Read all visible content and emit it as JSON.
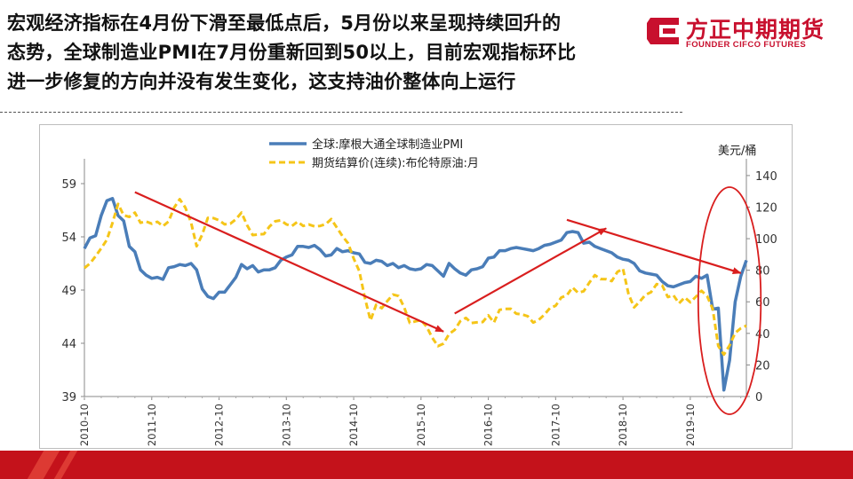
{
  "headline": [
    "宏观经济指标在4月份下滑至最低点后，5月份以来呈现持续回升的",
    "态势，全球制造业PMI在7月份重新回到50以上，目前宏观指标环比",
    "进一步修复的方向并没有发生变化，这支持油价整体向上运行"
  ],
  "logo": {
    "cn": "方正中期期货",
    "en": "FOUNDER CIFCO FUTURES",
    "icon": "founder-logo-mark"
  },
  "colors": {
    "pmi": "#4a7db8",
    "brent": "#f5c518",
    "arrow": "#d91e1e",
    "brand": "#c8102e"
  },
  "chart_data": {
    "type": "line",
    "x_tick_labels": [
      "2010-10",
      "2011-10",
      "2012-10",
      "2013-10",
      "2014-10",
      "2015-10",
      "2016-10",
      "2017-10",
      "2018-10",
      "2019-10"
    ],
    "right_axis_unit": "美元/桶",
    "left_axis": {
      "ticks": [
        39,
        44,
        49,
        54,
        59
      ],
      "ylim": [
        39,
        60.5
      ]
    },
    "right_axis": {
      "ticks": [
        0,
        20,
        40,
        60,
        80,
        100,
        120,
        140
      ],
      "ylim": [
        0,
        145
      ]
    },
    "legend_placement": "top-center",
    "series": [
      {
        "name": "全球:摩根大通全球制造业PMI",
        "axis": "left",
        "style": "solid",
        "points": [
          [
            "2010-10",
            52.9
          ],
          [
            "2010-11",
            53.9
          ],
          [
            "2010-12",
            54.1
          ],
          [
            "2011-01",
            56.0
          ],
          [
            "2011-02",
            57.4
          ],
          [
            "2011-03",
            57.6
          ],
          [
            "2011-04",
            56.0
          ],
          [
            "2011-05",
            55.5
          ],
          [
            "2011-06",
            53.1
          ],
          [
            "2011-07",
            52.6
          ],
          [
            "2011-08",
            50.9
          ],
          [
            "2011-09",
            50.4
          ],
          [
            "2011-10",
            50.1
          ],
          [
            "2011-11",
            50.2
          ],
          [
            "2011-12",
            50.0
          ],
          [
            "2012-01",
            51.1
          ],
          [
            "2012-02",
            51.2
          ],
          [
            "2012-03",
            51.4
          ],
          [
            "2012-04",
            51.3
          ],
          [
            "2012-05",
            51.5
          ],
          [
            "2012-06",
            50.9
          ],
          [
            "2012-07",
            49.1
          ],
          [
            "2012-08",
            48.4
          ],
          [
            "2012-09",
            48.2
          ],
          [
            "2012-10",
            48.8
          ],
          [
            "2012-11",
            48.8
          ],
          [
            "2012-12",
            49.5
          ],
          [
            "2013-01",
            50.2
          ],
          [
            "2013-02",
            51.4
          ],
          [
            "2013-03",
            51.0
          ],
          [
            "2013-04",
            51.3
          ],
          [
            "2013-05",
            50.7
          ],
          [
            "2013-06",
            50.9
          ],
          [
            "2013-07",
            50.9
          ],
          [
            "2013-08",
            51.1
          ],
          [
            "2013-09",
            51.8
          ],
          [
            "2013-10",
            52.1
          ],
          [
            "2013-11",
            52.3
          ],
          [
            "2013-12",
            53.1
          ],
          [
            "2014-01",
            53.1
          ],
          [
            "2014-02",
            53.0
          ],
          [
            "2014-03",
            53.2
          ],
          [
            "2014-04",
            52.8
          ],
          [
            "2014-05",
            52.2
          ],
          [
            "2014-06",
            52.3
          ],
          [
            "2014-07",
            52.9
          ],
          [
            "2014-08",
            52.6
          ],
          [
            "2014-09",
            52.7
          ],
          [
            "2014-10",
            52.5
          ],
          [
            "2014-11",
            52.4
          ],
          [
            "2014-12",
            51.6
          ],
          [
            "2015-01",
            51.5
          ],
          [
            "2015-02",
            51.8
          ],
          [
            "2015-03",
            51.7
          ],
          [
            "2015-04",
            51.3
          ],
          [
            "2015-05",
            51.5
          ],
          [
            "2015-06",
            51.1
          ],
          [
            "2015-07",
            51.3
          ],
          [
            "2015-08",
            51.0
          ],
          [
            "2015-09",
            50.9
          ],
          [
            "2015-10",
            51.0
          ],
          [
            "2015-11",
            51.4
          ],
          [
            "2015-12",
            51.3
          ],
          [
            "2016-01",
            50.8
          ],
          [
            "2016-02",
            50.3
          ],
          [
            "2016-03",
            51.5
          ],
          [
            "2016-04",
            51.0
          ],
          [
            "2016-05",
            50.6
          ],
          [
            "2016-06",
            50.4
          ],
          [
            "2016-07",
            50.9
          ],
          [
            "2016-08",
            51.0
          ],
          [
            "2016-09",
            51.2
          ],
          [
            "2016-10",
            52.0
          ],
          [
            "2016-11",
            52.1
          ],
          [
            "2016-12",
            52.7
          ],
          [
            "2017-01",
            52.7
          ],
          [
            "2017-02",
            52.9
          ],
          [
            "2017-03",
            53.0
          ],
          [
            "2017-04",
            52.9
          ],
          [
            "2017-05",
            52.8
          ],
          [
            "2017-06",
            52.7
          ],
          [
            "2017-07",
            52.9
          ],
          [
            "2017-08",
            53.2
          ],
          [
            "2017-09",
            53.3
          ],
          [
            "2017-10",
            53.5
          ],
          [
            "2017-11",
            53.7
          ],
          [
            "2017-12",
            54.4
          ],
          [
            "2018-01",
            54.5
          ],
          [
            "2018-02",
            54.4
          ],
          [
            "2018-03",
            53.4
          ],
          [
            "2018-04",
            53.5
          ],
          [
            "2018-05",
            53.1
          ],
          [
            "2018-06",
            52.9
          ],
          [
            "2018-07",
            52.7
          ],
          [
            "2018-08",
            52.5
          ],
          [
            "2018-09",
            52.1
          ],
          [
            "2018-10",
            51.9
          ],
          [
            "2018-11",
            51.8
          ],
          [
            "2018-12",
            51.5
          ],
          [
            "2019-01",
            50.8
          ],
          [
            "2019-02",
            50.6
          ],
          [
            "2019-03",
            50.5
          ],
          [
            "2019-04",
            50.4
          ],
          [
            "2019-05",
            49.8
          ],
          [
            "2019-06",
            49.4
          ],
          [
            "2019-07",
            49.3
          ],
          [
            "2019-08",
            49.5
          ],
          [
            "2019-09",
            49.7
          ],
          [
            "2019-10",
            49.8
          ],
          [
            "2019-11",
            50.3
          ],
          [
            "2019-12",
            50.1
          ],
          [
            "2020-01",
            50.4
          ],
          [
            "2020-02",
            47.2
          ],
          [
            "2020-03",
            47.3
          ],
          [
            "2020-04",
            39.6
          ],
          [
            "2020-05",
            42.4
          ],
          [
            "2020-06",
            47.9
          ],
          [
            "2020-07",
            50.3
          ],
          [
            "2020-08",
            51.8
          ]
        ]
      },
      {
        "name": "期货结算价(连续):布伦特原油:月",
        "axis": "right",
        "style": "dashed",
        "points": [
          [
            "2010-10",
            81.4
          ],
          [
            "2010-11",
            84.3
          ],
          [
            "2010-12",
            88.9
          ],
          [
            "2011-01",
            93.9
          ],
          [
            "2011-02",
            99.3
          ],
          [
            "2011-03",
            110.0
          ],
          [
            "2011-04",
            122.0
          ],
          [
            "2011-05",
            114.8
          ],
          [
            "2011-06",
            113.8
          ],
          [
            "2011-07",
            116.5
          ],
          [
            "2011-08",
            110.1
          ],
          [
            "2011-09",
            110.9
          ],
          [
            "2011-10",
            109.5
          ],
          [
            "2011-11",
            110.7
          ],
          [
            "2011-12",
            107.9
          ],
          [
            "2012-01",
            110.9
          ],
          [
            "2012-02",
            119.7
          ],
          [
            "2012-03",
            125.0
          ],
          [
            "2012-04",
            119.7
          ],
          [
            "2012-05",
            110.3
          ],
          [
            "2012-06",
            95.2
          ],
          [
            "2012-07",
            102.6
          ],
          [
            "2012-08",
            113.2
          ],
          [
            "2012-09",
            113.0
          ],
          [
            "2012-10",
            111.7
          ],
          [
            "2012-11",
            109.1
          ],
          [
            "2012-12",
            109.5
          ],
          [
            "2013-01",
            112.3
          ],
          [
            "2013-02",
            116.5
          ],
          [
            "2013-03",
            108.5
          ],
          [
            "2013-04",
            102.3
          ],
          [
            "2013-05",
            102.7
          ],
          [
            "2013-06",
            102.9
          ],
          [
            "2013-07",
            107.7
          ],
          [
            "2013-08",
            111.0
          ],
          [
            "2013-09",
            111.6
          ],
          [
            "2013-10",
            109.1
          ],
          [
            "2013-11",
            108.0
          ],
          [
            "2013-12",
            110.8
          ],
          [
            "2014-01",
            108.1
          ],
          [
            "2014-02",
            109.0
          ],
          [
            "2014-03",
            107.8
          ],
          [
            "2014-04",
            108.1
          ],
          [
            "2014-05",
            109.2
          ],
          [
            "2014-06",
            112.4
          ],
          [
            "2014-07",
            107.0
          ],
          [
            "2014-08",
            101.6
          ],
          [
            "2014-09",
            97.1
          ],
          [
            "2014-10",
            87.4
          ],
          [
            "2014-11",
            79.4
          ],
          [
            "2014-12",
            62.3
          ],
          [
            "2015-01",
            48.2
          ],
          [
            "2015-02",
            58.1
          ],
          [
            "2015-03",
            56.0
          ],
          [
            "2015-04",
            60.5
          ],
          [
            "2015-05",
            64.6
          ],
          [
            "2015-06",
            63.7
          ],
          [
            "2015-07",
            56.5
          ],
          [
            "2015-08",
            46.6
          ],
          [
            "2015-09",
            47.6
          ],
          [
            "2015-10",
            48.4
          ],
          [
            "2015-11",
            44.3
          ],
          [
            "2015-12",
            37.3
          ],
          [
            "2016-01",
            31.9
          ],
          [
            "2016-02",
            33.5
          ],
          [
            "2016-03",
            39.6
          ],
          [
            "2016-04",
            42.2
          ],
          [
            "2016-05",
            47.7
          ],
          [
            "2016-06",
            49.8
          ],
          [
            "2016-07",
            46.6
          ],
          [
            "2016-08",
            47.0
          ],
          [
            "2016-09",
            47.2
          ],
          [
            "2016-10",
            51.4
          ],
          [
            "2016-11",
            46.9
          ],
          [
            "2016-12",
            54.9
          ],
          [
            "2017-01",
            55.5
          ],
          [
            "2017-02",
            55.6
          ],
          [
            "2017-03",
            52.5
          ],
          [
            "2017-04",
            52.0
          ],
          [
            "2017-05",
            50.9
          ],
          [
            "2017-06",
            46.9
          ],
          [
            "2017-07",
            48.6
          ],
          [
            "2017-08",
            51.9
          ],
          [
            "2017-09",
            56.1
          ],
          [
            "2017-10",
            57.5
          ],
          [
            "2017-11",
            62.7
          ],
          [
            "2017-12",
            64.1
          ],
          [
            "2018-01",
            69.1
          ],
          [
            "2018-02",
            65.7
          ],
          [
            "2018-03",
            66.7
          ],
          [
            "2018-04",
            72.1
          ],
          [
            "2018-05",
            76.9
          ],
          [
            "2018-06",
            74.4
          ],
          [
            "2018-07",
            74.3
          ],
          [
            "2018-08",
            73.1
          ],
          [
            "2018-09",
            78.9
          ],
          [
            "2018-10",
            81.0
          ],
          [
            "2018-11",
            64.8
          ],
          [
            "2018-12",
            56.5
          ],
          [
            "2019-01",
            60.2
          ],
          [
            "2019-02",
            64.4
          ],
          [
            "2019-03",
            66.1
          ],
          [
            "2019-04",
            71.2
          ],
          [
            "2019-05",
            70.3
          ],
          [
            "2019-06",
            63.0
          ],
          [
            "2019-07",
            64.2
          ],
          [
            "2019-08",
            59.0
          ],
          [
            "2019-09",
            62.8
          ],
          [
            "2019-10",
            59.7
          ],
          [
            "2019-11",
            63.2
          ],
          [
            "2019-12",
            67.0
          ],
          [
            "2020-01",
            63.7
          ],
          [
            "2020-02",
            55.5
          ],
          [
            "2020-03",
            32.0
          ],
          [
            "2020-04",
            26.6
          ],
          [
            "2020-05",
            32.4
          ],
          [
            "2020-06",
            40.3
          ],
          [
            "2020-07",
            43.2
          ],
          [
            "2020-08",
            44.9
          ]
        ]
      }
    ],
    "annotations": [
      {
        "kind": "arrow",
        "from": [
          "2011-07",
          58.2
        ],
        "to": [
          "2016-02",
          45.1
        ]
      },
      {
        "kind": "arrow",
        "from": [
          "2016-04",
          46.8
        ],
        "to": [
          "2018-07",
          54.8
        ]
      },
      {
        "kind": "arrow",
        "from": [
          "2017-12",
          55.6
        ],
        "to": [
          "2020-07",
          50.6
        ]
      },
      {
        "kind": "ellipse",
        "center": [
          "2020-05",
          48.0
        ],
        "span_months": 8,
        "span_y": 19
      }
    ]
  }
}
